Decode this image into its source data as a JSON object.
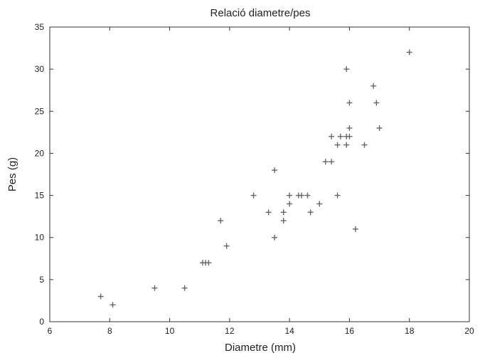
{
  "chart_data": {
    "type": "scatter",
    "title": "Relació diametre/pes",
    "xlabel": "Diametre (mm)",
    "ylabel": "Pes (g)",
    "xlim": [
      6,
      20
    ],
    "ylim": [
      0,
      35
    ],
    "xticks": [
      6,
      8,
      10,
      12,
      14,
      16,
      18,
      20
    ],
    "yticks": [
      0,
      5,
      10,
      15,
      20,
      25,
      30,
      35
    ],
    "marker": "plus",
    "grid": false,
    "legend": "none",
    "point_color": "#666666",
    "axis_color": "#333333",
    "points": [
      {
        "x": 7.7,
        "y": 3
      },
      {
        "x": 8.1,
        "y": 2
      },
      {
        "x": 9.5,
        "y": 4
      },
      {
        "x": 10.5,
        "y": 4
      },
      {
        "x": 11.1,
        "y": 7
      },
      {
        "x": 11.2,
        "y": 7
      },
      {
        "x": 11.3,
        "y": 7
      },
      {
        "x": 11.7,
        "y": 12
      },
      {
        "x": 11.9,
        "y": 9
      },
      {
        "x": 12.8,
        "y": 15
      },
      {
        "x": 13.3,
        "y": 13
      },
      {
        "x": 13.5,
        "y": 10
      },
      {
        "x": 13.5,
        "y": 18
      },
      {
        "x": 13.8,
        "y": 13
      },
      {
        "x": 13.8,
        "y": 12
      },
      {
        "x": 14.0,
        "y": 15
      },
      {
        "x": 14.0,
        "y": 14
      },
      {
        "x": 14.3,
        "y": 15
      },
      {
        "x": 14.4,
        "y": 15
      },
      {
        "x": 14.6,
        "y": 15
      },
      {
        "x": 14.7,
        "y": 13
      },
      {
        "x": 15.0,
        "y": 14
      },
      {
        "x": 15.2,
        "y": 19
      },
      {
        "x": 15.4,
        "y": 19
      },
      {
        "x": 15.4,
        "y": 22
      },
      {
        "x": 15.6,
        "y": 21
      },
      {
        "x": 15.6,
        "y": 15
      },
      {
        "x": 15.7,
        "y": 22
      },
      {
        "x": 15.9,
        "y": 22
      },
      {
        "x": 15.9,
        "y": 21
      },
      {
        "x": 15.9,
        "y": 30
      },
      {
        "x": 16.0,
        "y": 26
      },
      {
        "x": 16.0,
        "y": 23
      },
      {
        "x": 16.0,
        "y": 22
      },
      {
        "x": 16.2,
        "y": 11
      },
      {
        "x": 16.5,
        "y": 21
      },
      {
        "x": 16.8,
        "y": 28
      },
      {
        "x": 16.9,
        "y": 26
      },
      {
        "x": 17.0,
        "y": 23
      },
      {
        "x": 18.0,
        "y": 32
      }
    ]
  }
}
